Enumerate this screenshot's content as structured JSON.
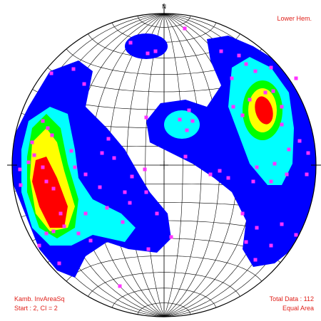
{
  "north": "N",
  "hemisphere": "Lower Hem.",
  "method": "Kamb. InvAreaSq",
  "contour": "Start : 2, CI = 2",
  "total": "Total Data : 112",
  "projection": "Equal Area"
}
